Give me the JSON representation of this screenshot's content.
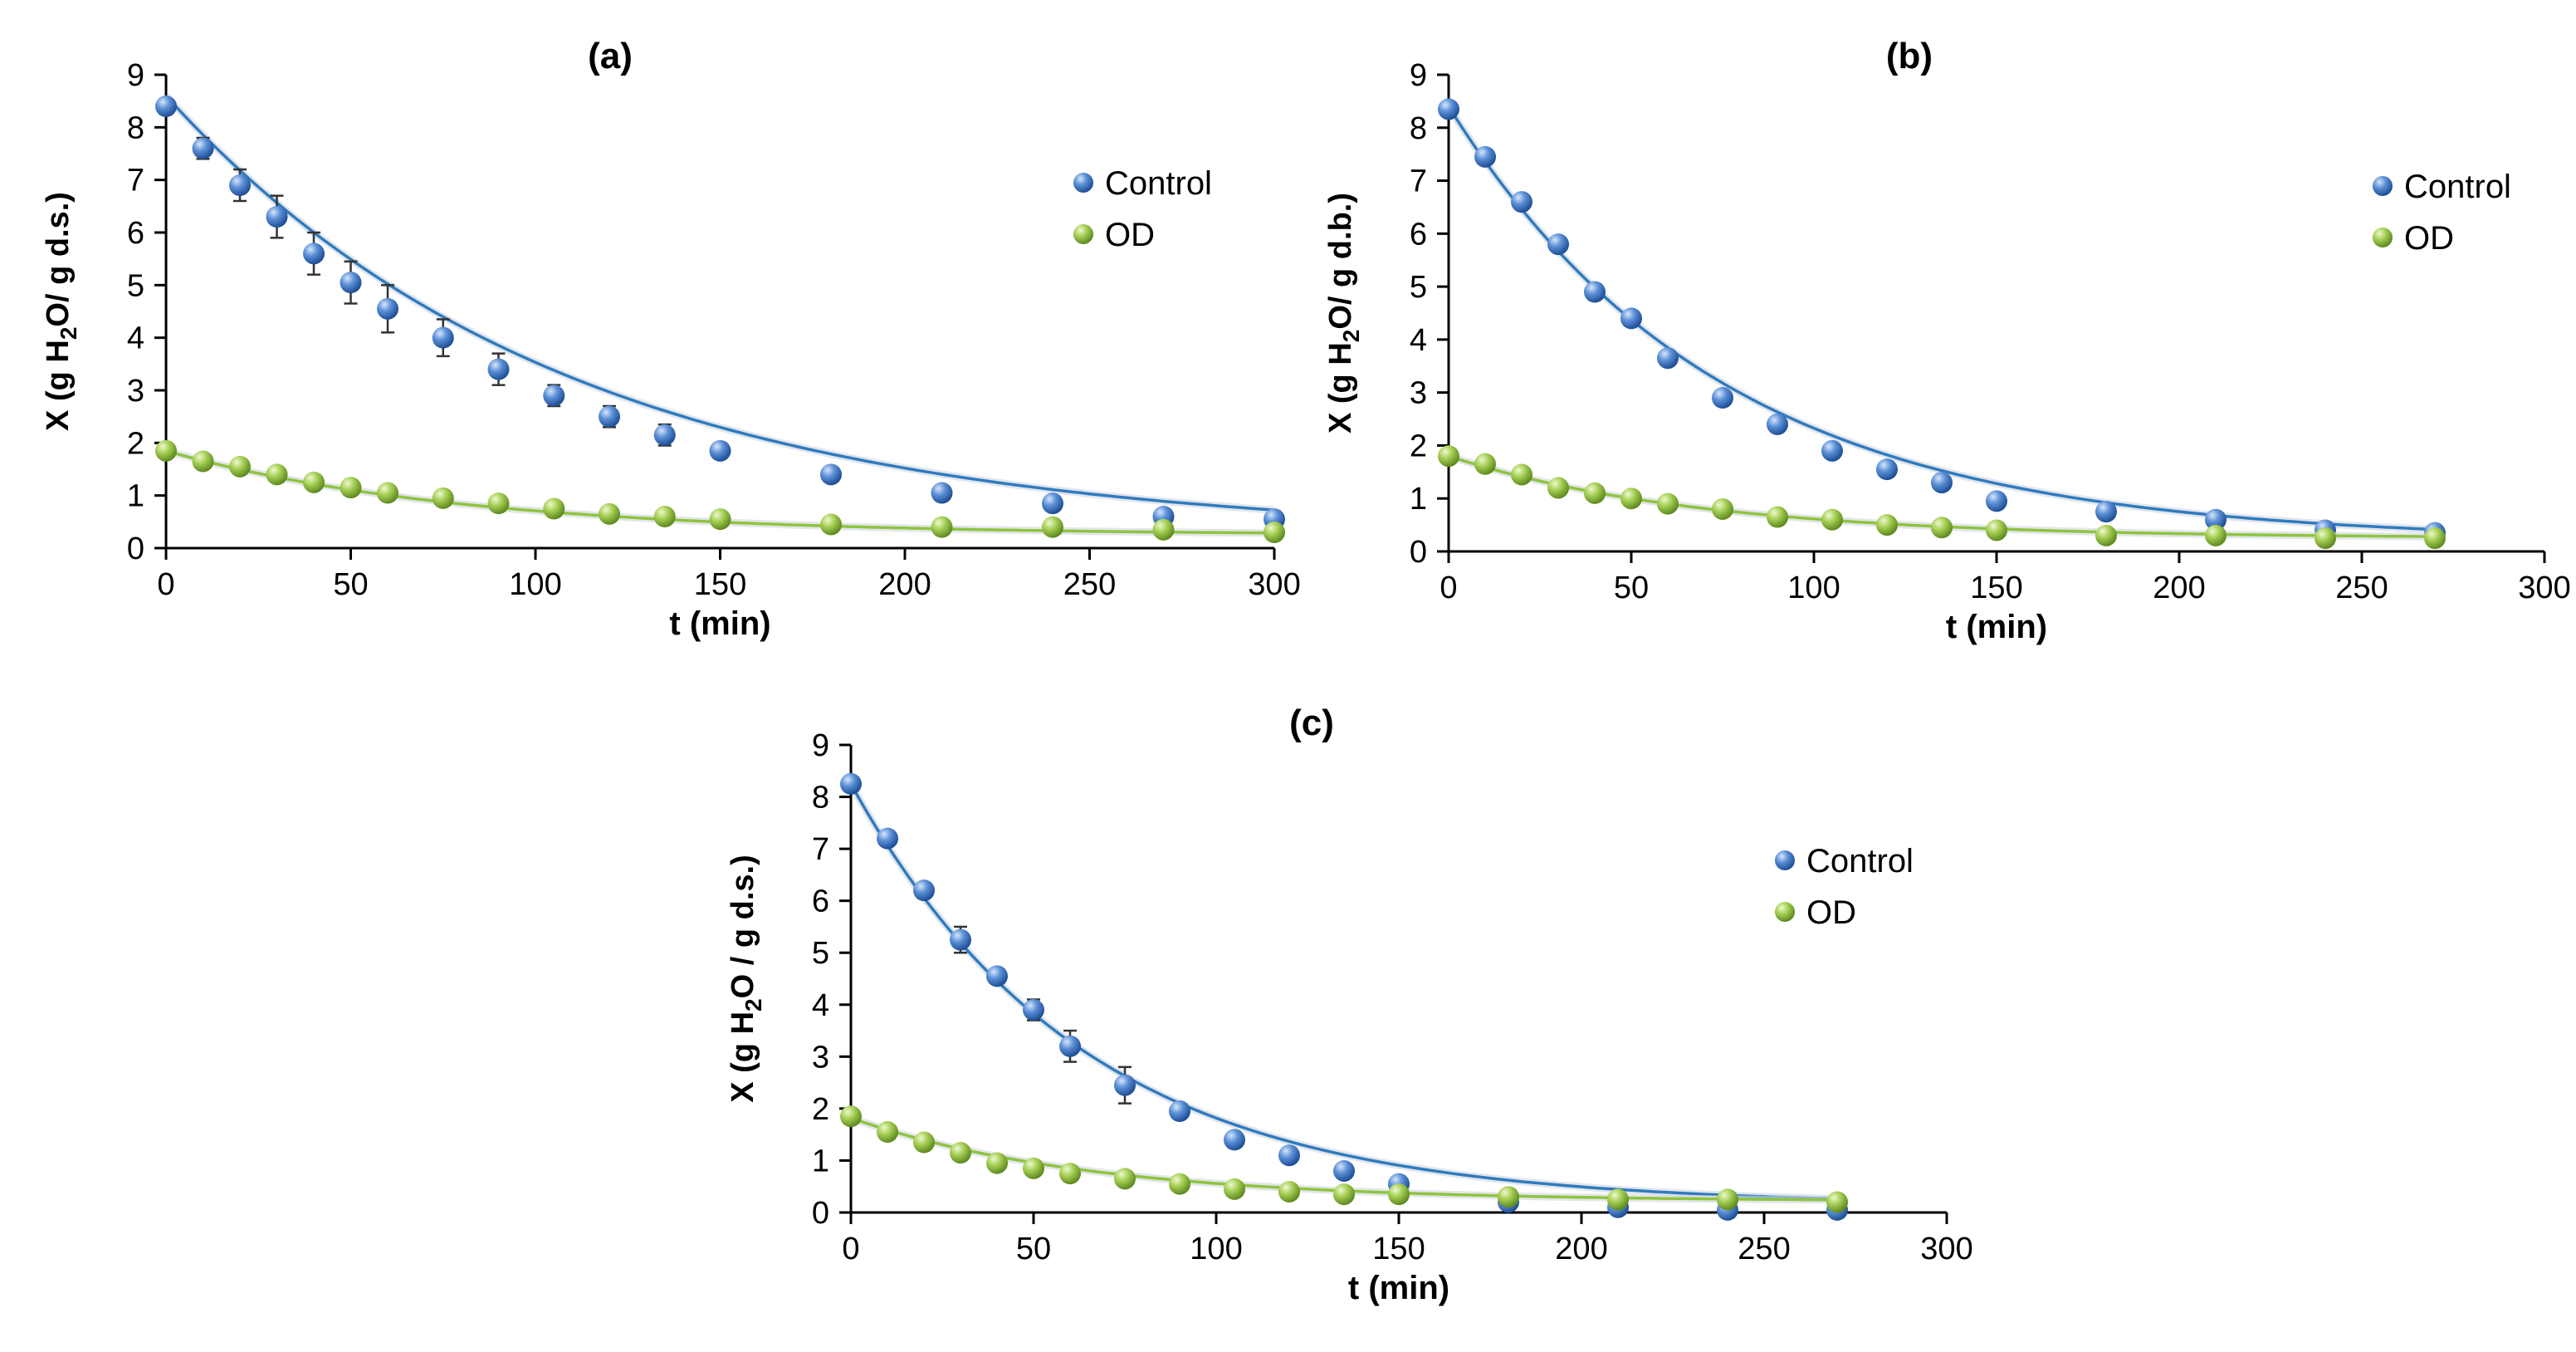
{
  "chart_data": [
    {
      "type": "scatter",
      "title": "(a)",
      "xlabel": "t (min)",
      "ylabel": {
        "prefix": "X (g H",
        "sub": "2",
        "suffix": "O/ g d.s.)"
      },
      "xlim": [
        0,
        300
      ],
      "ylim": [
        0,
        9
      ],
      "xticks": [
        0,
        50,
        100,
        150,
        200,
        250,
        300
      ],
      "yticks": [
        0,
        1,
        2,
        3,
        4,
        5,
        6,
        7,
        8,
        9
      ],
      "grid": false,
      "legend_position": "top-right",
      "series": [
        {
          "name": "Control",
          "marker_color": "#4a7ec8",
          "line_color": "#2f7bbf",
          "x": [
            0,
            10,
            20,
            30,
            40,
            50,
            60,
            75,
            90,
            105,
            120,
            135,
            150,
            180,
            210,
            240,
            270,
            300
          ],
          "y": [
            8.4,
            7.6,
            6.9,
            6.3,
            5.6,
            5.05,
            4.55,
            4.0,
            3.4,
            2.9,
            2.5,
            2.15,
            1.85,
            1.4,
            1.05,
            0.85,
            0.6,
            0.55
          ],
          "yerr": [
            0.1,
            0.2,
            0.3,
            0.4,
            0.4,
            0.4,
            0.45,
            0.35,
            0.3,
            0.2,
            0.2,
            0.2,
            0.15,
            0.1,
            0.1,
            0.1,
            0.1,
            0.05
          ],
          "fit": {
            "kind": "exponential",
            "a": 8.4,
            "k": 0.00925,
            "c": 0.2
          }
        },
        {
          "name": "OD",
          "marker_color": "#9cc84a",
          "line_color": "#8fc43e",
          "x": [
            0,
            10,
            20,
            30,
            40,
            50,
            60,
            75,
            90,
            105,
            120,
            135,
            150,
            180,
            210,
            240,
            270,
            300
          ],
          "y": [
            1.85,
            1.65,
            1.55,
            1.4,
            1.25,
            1.15,
            1.05,
            0.95,
            0.85,
            0.75,
            0.65,
            0.6,
            0.55,
            0.45,
            0.4,
            0.4,
            0.35,
            0.3
          ],
          "fit": {
            "kind": "exponential",
            "a": 1.6,
            "k": 0.0125,
            "c": 0.25
          }
        }
      ]
    },
    {
      "type": "scatter",
      "title": "(b)",
      "xlabel": "t (min)",
      "ylabel": {
        "prefix": "X (g H",
        "sub": "2",
        "suffix": "O/ g d.b.)"
      },
      "xlim": [
        0,
        300
      ],
      "ylim": [
        0,
        9
      ],
      "xticks": [
        0,
        50,
        100,
        150,
        200,
        250,
        300
      ],
      "yticks": [
        0,
        1,
        2,
        3,
        4,
        5,
        6,
        7,
        8,
        9
      ],
      "grid": false,
      "legend_position": "top-right",
      "series": [
        {
          "name": "Control",
          "marker_color": "#4a7ec8",
          "line_color": "#2f7bbf",
          "x": [
            0,
            10,
            20,
            30,
            40,
            50,
            60,
            75,
            90,
            105,
            120,
            135,
            150,
            180,
            210,
            240,
            270
          ],
          "y": [
            8.35,
            7.45,
            6.6,
            5.8,
            4.9,
            4.4,
            3.65,
            2.9,
            2.4,
            1.9,
            1.55,
            1.3,
            0.95,
            0.75,
            0.6,
            0.4,
            0.35
          ],
          "yerr": [
            0.05,
            0.05,
            0.05,
            0.05,
            0.15,
            0.1,
            0.05,
            0.05,
            0.05,
            0.05,
            0.05,
            0.05,
            0.05,
            0.05,
            0.05,
            0.05,
            0.05
          ],
          "fit": {
            "kind": "exponential",
            "a": 8.2,
            "k": 0.0135,
            "c": 0.2
          }
        },
        {
          "name": "OD",
          "marker_color": "#9cc84a",
          "line_color": "#8fc43e",
          "x": [
            0,
            10,
            20,
            30,
            40,
            50,
            60,
            75,
            90,
            105,
            120,
            135,
            150,
            180,
            210,
            240,
            270
          ],
          "y": [
            1.8,
            1.65,
            1.45,
            1.2,
            1.1,
            1.0,
            0.9,
            0.8,
            0.65,
            0.6,
            0.5,
            0.45,
            0.4,
            0.3,
            0.3,
            0.25,
            0.25
          ],
          "fit": {
            "kind": "exponential",
            "a": 1.55,
            "k": 0.0145,
            "c": 0.25
          }
        }
      ]
    },
    {
      "type": "scatter",
      "title": "(c)",
      "xlabel": "t (min)",
      "ylabel": {
        "prefix": "X (g H",
        "sub": "2",
        "suffix": "O / g d.s.)"
      },
      "xlim": [
        0,
        300
      ],
      "ylim": [
        0,
        9
      ],
      "xticks": [
        0,
        50,
        100,
        150,
        200,
        250,
        300
      ],
      "yticks": [
        0,
        1,
        2,
        3,
        4,
        5,
        6,
        7,
        8,
        9
      ],
      "grid": false,
      "legend_position": "top-right",
      "series": [
        {
          "name": "Control",
          "marker_color": "#4a7ec8",
          "line_color": "#2f7bbf",
          "x": [
            0,
            10,
            20,
            30,
            40,
            50,
            60,
            75,
            90,
            105,
            120,
            135,
            150,
            180,
            210,
            240,
            270
          ],
          "y": [
            8.25,
            7.2,
            6.2,
            5.25,
            4.55,
            3.9,
            3.2,
            2.45,
            1.95,
            1.4,
            1.1,
            0.8,
            0.55,
            0.2,
            0.1,
            0.05,
            0.05
          ],
          "yerr": [
            0.1,
            0.05,
            0.1,
            0.25,
            0.1,
            0.2,
            0.3,
            0.35,
            0.1,
            0.1,
            0.1,
            0.05,
            0.05,
            0.05,
            0.05,
            0.05,
            0.05
          ],
          "fit": {
            "kind": "exponential",
            "a": 8.1,
            "k": 0.0158,
            "c": 0.15
          }
        },
        {
          "name": "OD",
          "marker_color": "#9cc84a",
          "line_color": "#8fc43e",
          "x": [
            0,
            10,
            20,
            30,
            40,
            50,
            60,
            75,
            90,
            105,
            120,
            135,
            150,
            180,
            210,
            240,
            270
          ],
          "y": [
            1.85,
            1.55,
            1.35,
            1.15,
            0.95,
            0.85,
            0.75,
            0.65,
            0.55,
            0.45,
            0.4,
            0.35,
            0.35,
            0.3,
            0.25,
            0.25,
            0.2
          ],
          "fit": {
            "kind": "exponential",
            "a": 1.6,
            "k": 0.0155,
            "c": 0.22
          }
        }
      ]
    }
  ]
}
